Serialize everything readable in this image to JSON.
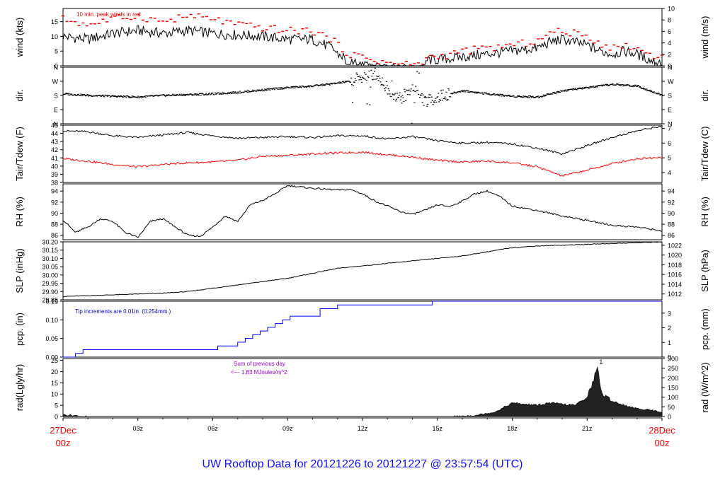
{
  "footer": "UW Rooftop Data for 20121226  to  20121227 @ 23:57:54  (UTC)",
  "colors": {
    "series": "#000000",
    "dewpoint": "#ff0000",
    "peak": "#ff0000",
    "precip": "#0000ff",
    "note": "#0000cc",
    "solar_note": "#9900cc",
    "edge_time": "#ff0000"
  },
  "x_axis": {
    "start_day": "27Dec",
    "start_hour": "00z",
    "end_day": "28Dec",
    "end_hour": "00z",
    "ticks": [
      "03z",
      "06z",
      "09z",
      "12z",
      "15z",
      "18z",
      "21z"
    ]
  },
  "chart_data": [
    {
      "type": "line",
      "key": "wind",
      "ylabel": "wind (kts)",
      "ylabel_right": "wind (m/s)",
      "annotation": "10 min. peak winds in red",
      "ylim": [
        0,
        19.5
      ],
      "ticks": [
        "0",
        "5",
        "10",
        "15"
      ],
      "ylim_right": [
        0,
        10
      ],
      "ticks_right": [
        "0",
        "2",
        "4",
        "6",
        "8",
        "10"
      ],
      "x": [
        0,
        1,
        2,
        3,
        4,
        5,
        6,
        7,
        8,
        9,
        10,
        10.8,
        11,
        11.5,
        12,
        12.5,
        13,
        14,
        14.3,
        14.6,
        15,
        16,
        17,
        18,
        19,
        19.5,
        20,
        20.5,
        21,
        21.5,
        22,
        22.5,
        23,
        23.5,
        24
      ],
      "series": [
        {
          "values": [
            10,
            9,
            11,
            12,
            11,
            12,
            11,
            10.5,
            10,
            9,
            9,
            6,
            4,
            2,
            1.5,
            1,
            0.3,
            0,
            0,
            2,
            2,
            3,
            4,
            5,
            6,
            8,
            9,
            8,
            7,
            5,
            4,
            5,
            4,
            2,
            1
          ]
        },
        {
          "style": "markers",
          "values": [
            16,
            14,
            16,
            17,
            15,
            17,
            16,
            14,
            13,
            12,
            12,
            9,
            7,
            4,
            3,
            2,
            1,
            0.5,
            0.5,
            3,
            3,
            5,
            6,
            7,
            8.5,
            11,
            12,
            11,
            10,
            8,
            6,
            7,
            6,
            4,
            3
          ]
        }
      ]
    },
    {
      "type": "scatter",
      "key": "dir",
      "ylabel": "dir.",
      "ylabel_right": "dir.",
      "ylim": [
        0,
        360
      ],
      "ticks": [
        "N",
        "E",
        "S",
        "W",
        "N"
      ],
      "ticks_right": [
        "N",
        "E",
        "S",
        "W",
        "N"
      ],
      "x": [
        0,
        1,
        2,
        3,
        4,
        5,
        6,
        7,
        8,
        9,
        10,
        10.8,
        11.5,
        12,
        12.5,
        13,
        13.5,
        14,
        14.5,
        15,
        16,
        17,
        18,
        19,
        20,
        21,
        22,
        23,
        24
      ],
      "series": [
        {
          "values": [
            190,
            180,
            175,
            170,
            180,
            185,
            190,
            200,
            215,
            230,
            240,
            255,
            270,
            300,
            320,
            220,
            160,
            230,
            140,
            170,
            210,
            190,
            175,
            170,
            210,
            230,
            250,
            240,
            180
          ]
        }
      ]
    },
    {
      "type": "line",
      "key": "temp",
      "ylabel": "Tair/Tdew (F)",
      "ylabel_right": "Tair/Tdew (C)",
      "ylim": [
        38,
        45
      ],
      "ticks": [
        "38",
        "39",
        "40",
        "41",
        "42",
        "43",
        "44",
        "45"
      ],
      "ylim_right": [
        3.33,
        7.22
      ],
      "ticks_right": [
        "4",
        "5",
        "6",
        "7"
      ],
      "x": [
        0,
        1,
        2,
        3,
        4,
        5,
        6,
        7,
        8,
        9,
        10,
        11,
        12,
        13,
        14,
        15,
        16,
        17,
        18,
        19,
        20,
        21,
        22,
        23,
        24
      ],
      "series": [
        {
          "name": "Tair",
          "values": [
            44.3,
            44.2,
            43.7,
            43.5,
            43.8,
            44.1,
            43.7,
            43.4,
            43.5,
            43.6,
            43.5,
            43.7,
            43.7,
            43.3,
            43.6,
            43.1,
            42.8,
            42.9,
            42.7,
            42.2,
            41.5,
            42.5,
            43.5,
            44.3,
            44.9
          ]
        },
        {
          "name": "Tdew",
          "values": [
            40.9,
            40.6,
            40.2,
            39.9,
            40.2,
            40.4,
            40.5,
            40.7,
            41.2,
            41.3,
            41.5,
            41.6,
            41.7,
            41.4,
            41.1,
            40.7,
            40.5,
            40.6,
            40.4,
            39.9,
            38.8,
            39.5,
            40.3,
            40.9,
            41.1
          ]
        }
      ]
    },
    {
      "type": "line",
      "key": "rh",
      "ylabel": "RH (%)",
      "ylabel_right": "RH (%)",
      "ylim": [
        85.2,
        95.3
      ],
      "ticks": [
        "86",
        "88",
        "90",
        "92",
        "94"
      ],
      "ticks_right": [
        "86",
        "88",
        "90",
        "92",
        "94"
      ],
      "x": [
        0,
        0.5,
        1,
        1.5,
        2,
        2.5,
        3,
        3.5,
        4,
        4.5,
        5,
        5.5,
        6,
        6.5,
        7,
        7.5,
        8,
        8.5,
        9,
        10,
        11,
        11.5,
        12,
        12.5,
        13,
        13.5,
        14,
        14.5,
        15,
        15.5,
        16,
        16.5,
        17,
        17.5,
        18,
        19,
        20,
        21,
        22,
        23,
        24
      ],
      "series": [
        {
          "values": [
            88.8,
            86.5,
            87.5,
            89,
            88.5,
            86.5,
            85.6,
            88.5,
            89,
            87.5,
            86,
            85.8,
            87.5,
            89.5,
            88.5,
            91.5,
            92.3,
            93.5,
            95,
            94.5,
            94.2,
            94.3,
            93.5,
            92.2,
            91.3,
            90.3,
            89.8,
            90.5,
            91.5,
            91.2,
            92.2,
            93.5,
            94,
            93,
            91.3,
            90.5,
            89.5,
            88.7,
            87.8,
            87.5,
            86.8
          ]
        }
      ]
    },
    {
      "type": "line",
      "key": "slp",
      "ylabel": "SLP (inHg)",
      "ylabel_right": "SLP (hPa)",
      "ylim": [
        29.85,
        30.2
      ],
      "ticks": [
        "29.85",
        "29.90",
        "29.95",
        "30.00",
        "30.05",
        "30.10",
        "30.15",
        "30.20"
      ],
      "ylim_right": [
        1010.8,
        1022.7
      ],
      "ticks_right": [
        "1012",
        "1014",
        "1016",
        "1018",
        "1020",
        "1022"
      ],
      "x": [
        0,
        1,
        2,
        3,
        4,
        5,
        6,
        7,
        8,
        9,
        10,
        11,
        12,
        13,
        14,
        15,
        16,
        17,
        18,
        19,
        20,
        21,
        22,
        23,
        24
      ],
      "series": [
        {
          "values": [
            29.87,
            29.875,
            29.88,
            29.885,
            29.89,
            29.9,
            29.92,
            29.94,
            29.96,
            29.98,
            30.01,
            30.04,
            30.055,
            30.07,
            30.085,
            30.1,
            30.115,
            30.14,
            30.165,
            30.175,
            30.18,
            30.185,
            30.19,
            30.195,
            30.2
          ]
        }
      ]
    },
    {
      "type": "line",
      "key": "pcp",
      "ylabel": "pcp. (in)",
      "ylabel_right": "pcp. (mm)",
      "annotation": "Tip increments are 0.01in. (0.254mm.)",
      "ylim": [
        0,
        0.15
      ],
      "ticks": [
        "0.00",
        "0.05",
        "0.10",
        "0.15"
      ],
      "ylim_right": [
        0,
        3.81
      ],
      "ticks_right": [
        "0",
        "1",
        "2",
        "3"
      ],
      "x": [
        0,
        0.5,
        0.8,
        6.2,
        7.0,
        7.3,
        7.6,
        7.9,
        8.2,
        8.5,
        8.8,
        9.1,
        10.3,
        11.0,
        14.8,
        24
      ],
      "series": [
        {
          "style": "step",
          "values": [
            0,
            0.01,
            0.02,
            0.03,
            0.04,
            0.05,
            0.06,
            0.07,
            0.08,
            0.09,
            0.1,
            0.11,
            0.13,
            0.14,
            0.15,
            0.15
          ]
        }
      ]
    },
    {
      "type": "area",
      "key": "rad",
      "ylabel": "rad(Lgly/hr)",
      "ylabel_right": "rad (W/m^2)",
      "annotation": [
        "Sum of previous day",
        "<--- 1.83 MJoules/m^2"
      ],
      "peak_label": "1",
      "ylim": [
        0,
        25.8
      ],
      "ticks": [
        "0",
        "5",
        "10",
        "15",
        "20",
        "25"
      ],
      "ylim_right": [
        0,
        300
      ],
      "ticks_right": [
        "0",
        "50",
        "100",
        "150",
        "200",
        "250",
        "300"
      ],
      "x": [
        0,
        0.3,
        0.7,
        1,
        15.5,
        16.5,
        17.3,
        18,
        18.5,
        19,
        19.5,
        20,
        20.5,
        20.8,
        21,
        21.2,
        21.4,
        21.6,
        22,
        22.5,
        23,
        23.5,
        24
      ],
      "series": [
        {
          "values": [
            0.8,
            0.6,
            0.2,
            0,
            0,
            0.5,
            2,
            6,
            5.5,
            5,
            6,
            5.5,
            5,
            7,
            9,
            14,
            22,
            10,
            7,
            5,
            3.5,
            3,
            2
          ]
        }
      ]
    }
  ]
}
